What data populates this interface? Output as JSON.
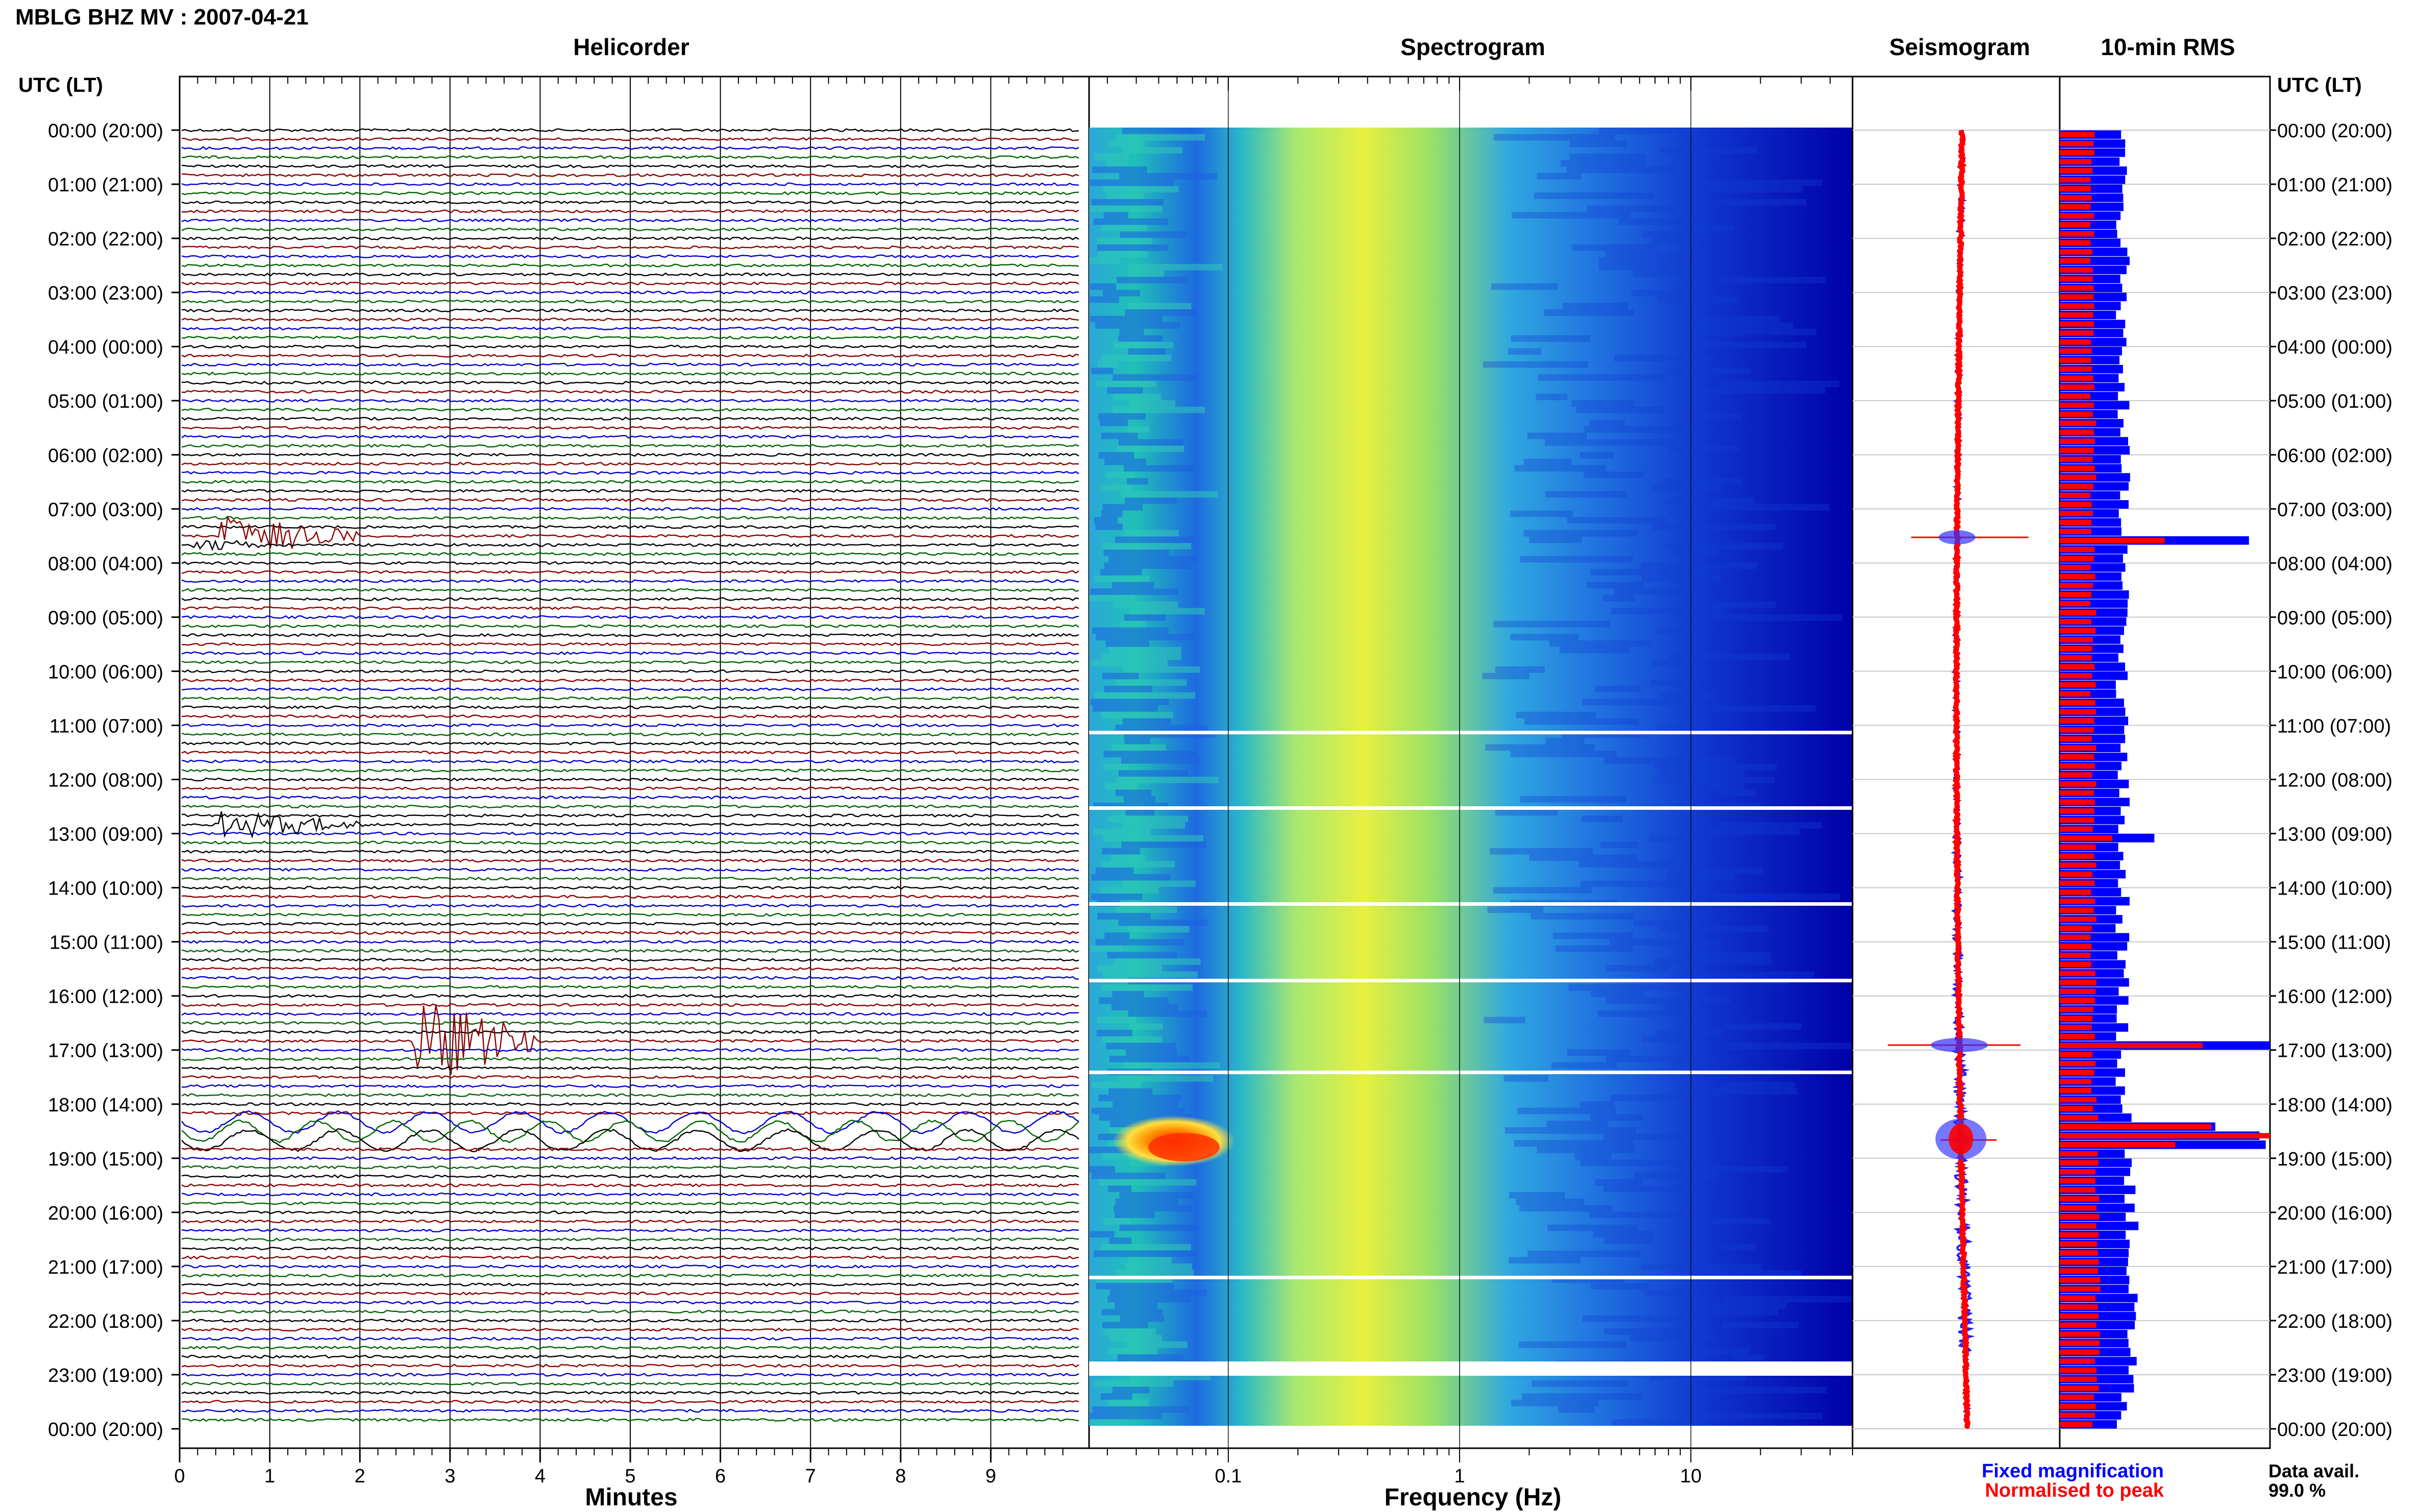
{
  "title": "MBLG BHZ MV : 2007-04-21",
  "panels": {
    "helicorder": "Helicorder",
    "spectrogram": "Spectrogram",
    "seismogram": "Seismogram",
    "rms": "10-min RMS"
  },
  "axis_header_left": "UTC (LT)",
  "axis_header_right": "UTC (LT)",
  "time_labels": [
    "00:00 (20:00)",
    "01:00 (21:00)",
    "02:00 (22:00)",
    "03:00 (23:00)",
    "04:00 (00:00)",
    "05:00 (01:00)",
    "06:00 (02:00)",
    "07:00 (03:00)",
    "08:00 (04:00)",
    "09:00 (05:00)",
    "10:00 (06:00)",
    "11:00 (07:00)",
    "12:00 (08:00)",
    "13:00 (09:00)",
    "14:00 (10:00)",
    "15:00 (11:00)",
    "16:00 (12:00)",
    "17:00 (13:00)",
    "18:00 (14:00)",
    "19:00 (15:00)",
    "20:00 (16:00)",
    "21:00 (17:00)",
    "22:00 (18:00)",
    "23:00 (19:00)",
    "00:00 (20:00)"
  ],
  "x_axes": {
    "helicorder_label": "Minutes",
    "helicorder_ticks": [
      "0",
      "1",
      "2",
      "3",
      "4",
      "5",
      "6",
      "7",
      "8",
      "9"
    ],
    "spectrogram_label": "Frequency (Hz)",
    "spectrogram_ticks": [
      "0.1",
      "1",
      "10"
    ]
  },
  "legend": {
    "fixed": "Fixed magnification",
    "normalised": "Normalised to peak",
    "fixed_color": "#0000ff",
    "normalised_color": "#ff0000"
  },
  "data_avail": {
    "label": "Data avail.",
    "value": "99.0 %"
  },
  "colors": {
    "helicorder_traces": [
      "#000000",
      "#8b0000",
      "#0000cd",
      "#006400"
    ],
    "spectrogram_low": "#0000a0",
    "spectrogram_high": "#ff2000"
  },
  "chart_data": [
    {
      "type": "line",
      "title": "Helicorder",
      "xlabel": "Minutes",
      "x_range": [
        0,
        10
      ],
      "rows_per_hour": 6,
      "row_minutes": 10,
      "events": [
        {
          "time": "07:30",
          "minute": 1.0,
          "size": "medium"
        },
        {
          "time": "12:50",
          "minute": 1.0,
          "size": "small"
        },
        {
          "time": "16:50",
          "minute": 3.0,
          "size": "large"
        },
        {
          "time": "18:20",
          "minute": 0.0,
          "size": "teleseismic, full row"
        }
      ]
    },
    {
      "type": "heatmap",
      "title": "Spectrogram",
      "xlabel": "Frequency (Hz)",
      "x_scale": "log",
      "x_range": [
        0.025,
        50
      ],
      "peak_band_hz": [
        0.2,
        0.5
      ],
      "event_hot_spot": {
        "time": "18:30",
        "freq_hz": [
          0.03,
          0.1
        ]
      }
    },
    {
      "type": "line",
      "title": "Seismogram",
      "spikes_utc": [
        "07:30",
        "16:55",
        "18:30"
      ]
    },
    {
      "type": "bar",
      "title": "10-min RMS",
      "series": [
        {
          "name": "Fixed magnification",
          "color": "#0000ff"
        },
        {
          "name": "Normalised to peak",
          "color": "#ff0000"
        }
      ],
      "peaks": [
        {
          "time": "07:30",
          "fixed": 0.9,
          "normalised": 0.5
        },
        {
          "time": "13:00",
          "fixed": 0.45,
          "normalised": 0.25
        },
        {
          "time": "16:50",
          "fixed": 1.0,
          "normalised": 0.68
        },
        {
          "time": "18:20",
          "fixed": 0.74,
          "normalised": 0.72
        },
        {
          "time": "18:30",
          "fixed": 0.95,
          "normalised": 1.0
        },
        {
          "time": "18:40",
          "fixed": 0.98,
          "normalised": 0.55
        }
      ],
      "baseline": {
        "fixed": 0.3,
        "normalised": 0.16
      }
    }
  ]
}
